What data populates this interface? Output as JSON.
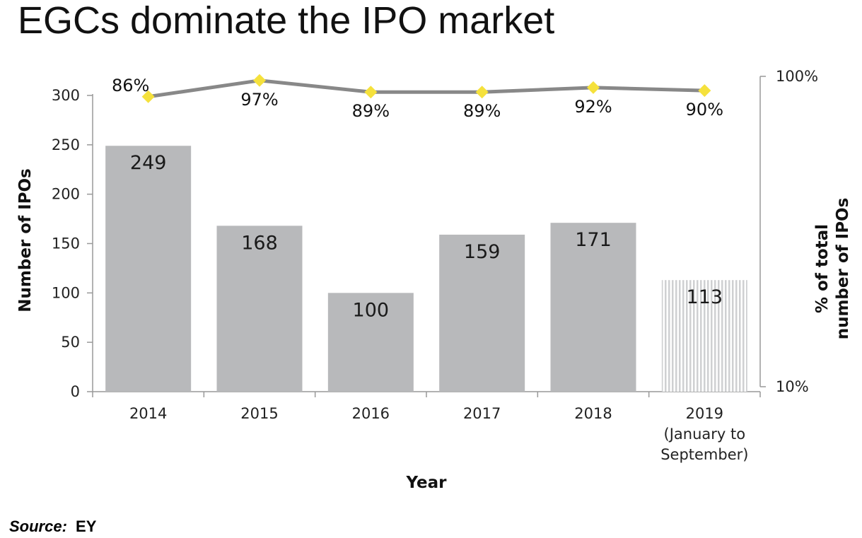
{
  "title": "EGCs dominate the IPO market",
  "source": {
    "label": "Source:",
    "value": "EY"
  },
  "colors": {
    "bar": "#b8b9bb",
    "bar_partial_stripe": "#cfd0d2",
    "line": "#888888",
    "marker": "#f5e13c",
    "axis": "#999999"
  },
  "chart_data": {
    "type": "bar",
    "title": "EGCs dominate the IPO market",
    "xlabel": "Year",
    "ylabel": "Number of IPOs",
    "ylim": [
      0,
      300
    ],
    "yticks": [
      0,
      50,
      100,
      150,
      200,
      250,
      300
    ],
    "y2label": [
      "% of total",
      "number of IPOs"
    ],
    "y2ticks": [
      "100%",
      "10%"
    ],
    "categories": [
      [
        "2014"
      ],
      [
        "2015"
      ],
      [
        "2016"
      ],
      [
        "2017"
      ],
      [
        "2018"
      ],
      [
        "2019",
        "(January to",
        "September)"
      ]
    ],
    "series": [
      {
        "type": "bar",
        "values": [
          249,
          168,
          100,
          159,
          171,
          113
        ],
        "labels": [
          "249",
          "168",
          "100",
          "159",
          "171",
          "113"
        ]
      },
      {
        "type": "line",
        "axis": "secondary",
        "values": [
          86,
          97,
          89,
          89,
          92,
          90
        ],
        "labels": [
          "86%",
          "97%",
          "89%",
          "89%",
          "92%",
          "90%"
        ]
      }
    ],
    "legend": "none",
    "grid": false
  }
}
